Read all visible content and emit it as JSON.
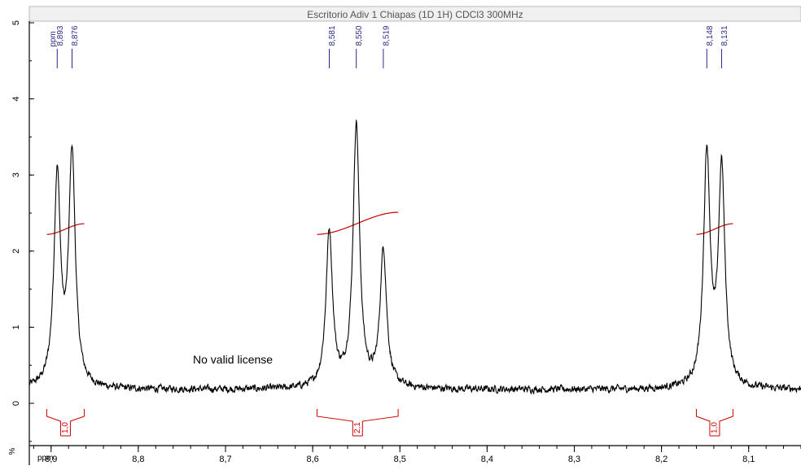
{
  "chart_data": {
    "type": "line",
    "title": "Escritorio Adiv 1 Chiapas (1D 1H) CDCl3 300MHz",
    "xlabel": "ppm",
    "ylabel": "%",
    "peak_axis_label": "ppm",
    "xlim": [
      8.925,
      8.04
    ],
    "ylim": [
      -0.75,
      5.1
    ],
    "x_reversed": true,
    "x_ticks": [
      {
        "value": 8.9,
        "label": "8,9"
      },
      {
        "value": 8.8,
        "label": "8,8"
      },
      {
        "value": 8.7,
        "label": "8,7"
      },
      {
        "value": 8.6,
        "label": "8,6"
      },
      {
        "value": 8.5,
        "label": "8,5"
      },
      {
        "value": 8.4,
        "label": "8,4"
      },
      {
        "value": 8.3,
        "label": "8,3"
      },
      {
        "value": 8.2,
        "label": "8,2"
      },
      {
        "value": 8.1,
        "label": "8,1"
      }
    ],
    "y_ticks": [
      {
        "value": 0,
        "label": "0"
      },
      {
        "value": 1,
        "label": "1"
      },
      {
        "value": 2,
        "label": "2"
      },
      {
        "value": 3,
        "label": "3"
      },
      {
        "value": 4,
        "label": "4"
      },
      {
        "value": 5,
        "label": "5"
      }
    ],
    "baseline": 0.18,
    "noise_amplitude": 0.07,
    "peak_width": 0.0045,
    "peaks": [
      {
        "ppm": 8.893,
        "height": 2.75
      },
      {
        "ppm": 8.876,
        "height": 3.05
      },
      {
        "ppm": 8.581,
        "height": 2.05
      },
      {
        "ppm": 8.55,
        "height": 3.45
      },
      {
        "ppm": 8.519,
        "height": 1.8
      },
      {
        "ppm": 8.148,
        "height": 3.05
      },
      {
        "ppm": 8.131,
        "height": 2.85
      }
    ],
    "peak_labels": [
      {
        "ppm": 8.893,
        "label": "8,893"
      },
      {
        "ppm": 8.876,
        "label": "8,876"
      },
      {
        "ppm": 8.581,
        "label": "8,581"
      },
      {
        "ppm": 8.55,
        "label": "8,550"
      },
      {
        "ppm": 8.519,
        "label": "8,519"
      },
      {
        "ppm": 8.148,
        "label": "8,148"
      },
      {
        "ppm": 8.131,
        "label": "8,131"
      }
    ],
    "integrals": [
      {
        "from": 8.905,
        "to": 8.862,
        "value": "1,0",
        "curve_start": 2.22,
        "curve_end": 2.36
      },
      {
        "from": 8.595,
        "to": 8.502,
        "value": "2,1",
        "curve_start": 2.22,
        "curve_end": 2.51
      },
      {
        "from": 8.16,
        "to": 8.118,
        "value": "1,0",
        "curve_start": 2.22,
        "curve_end": 2.36
      }
    ],
    "watermark": "No valid license",
    "colors": {
      "spectrum": "#000000",
      "integral": "#cc0000",
      "peak_label": "#2b2b8a",
      "title": "#555555",
      "axis": "#000000"
    }
  }
}
